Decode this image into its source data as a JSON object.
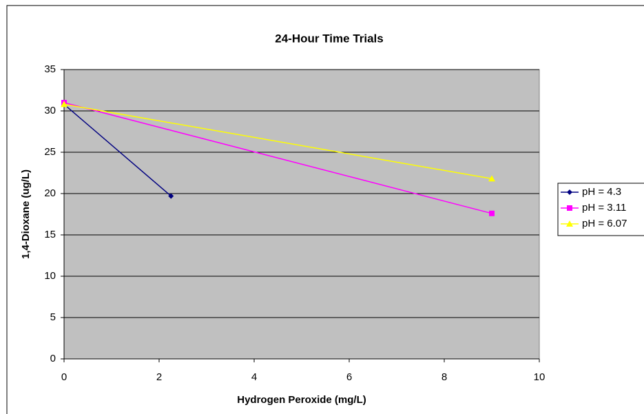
{
  "chart_data": {
    "type": "scatter",
    "title": "24-Hour Time Trials",
    "x_label": "Hydrogen Peroxide (mg/L)",
    "y_label": "1,4-Dioxane (ug/L)",
    "xlim": [
      0,
      10
    ],
    "xticks": [
      0,
      2,
      4,
      6,
      8,
      10
    ],
    "ylim": [
      0,
      35
    ],
    "yticks": [
      0,
      5,
      10,
      15,
      20,
      25,
      30,
      35
    ],
    "grid": true,
    "legend": "right",
    "series": [
      {
        "name": "pH = 4.3",
        "color": "#000080",
        "marker": "diamond",
        "x": [
          0,
          2.25
        ],
        "values": [
          30.8,
          19.7
        ]
      },
      {
        "name": "pH = 3.11",
        "color": "#ff00ff",
        "marker": "square",
        "x": [
          0,
          9
        ],
        "values": [
          31.0,
          17.6
        ]
      },
      {
        "name": "pH = 6.07",
        "color": "#ffff00",
        "marker": "triangle",
        "x": [
          0,
          9
        ],
        "values": [
          30.8,
          21.8
        ]
      }
    ]
  }
}
